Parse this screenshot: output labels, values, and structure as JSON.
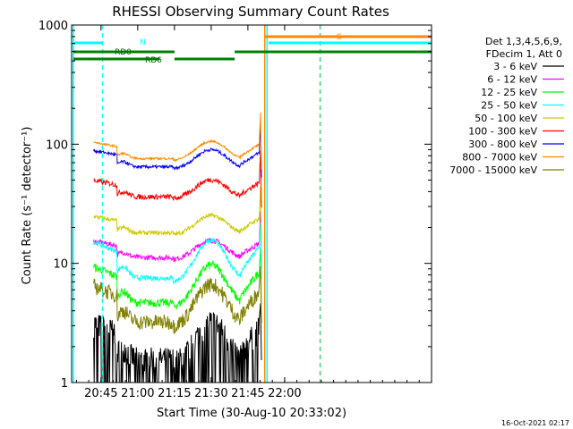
{
  "chart_data": {
    "type": "line",
    "title": "RHESSI Observing Summary Count Rates",
    "xlabel": "Start Time (30-Aug-10 20:33:02)",
    "ylabel": "Count Rate (s⁻¹ detector⁻¹)",
    "y_scale": "log",
    "ylim": [
      1,
      1000
    ],
    "xlim_minutes": [
      20.55,
      23.0
    ],
    "x_ticks": [
      {
        "label": "20:45",
        "t": 20.75
      },
      {
        "label": "21:00",
        "t": 21.0
      },
      {
        "label": "21:15",
        "t": 21.25
      },
      {
        "label": "21:30",
        "t": 21.5
      },
      {
        "label": "21:45",
        "t": 21.75
      },
      {
        "label": "22:00",
        "t": 22.0
      }
    ],
    "y_ticks": [
      {
        "label": "1",
        "v": 1
      },
      {
        "label": "10",
        "v": 10
      },
      {
        "label": "100",
        "v": 100
      },
      {
        "label": "1000",
        "v": 1000
      }
    ],
    "legend_header": [
      "Det 1,3,4,5,6,9,",
      "FDecim 1, Att 0"
    ],
    "legend_placement": "right",
    "series": [
      {
        "name": "3 - 6 keV",
        "color": "#000000",
        "level": 2.2,
        "noise": 0.25
      },
      {
        "name": "6 - 12 keV",
        "color": "#ff00ff",
        "level": 13.0,
        "noise": 0.05
      },
      {
        "name": "12 - 25 keV",
        "color": "#00ff00",
        "level": 6.5,
        "noise": 0.08
      },
      {
        "name": "25 - 50 keV",
        "color": "#00ffff",
        "level": 10.5,
        "noise": 0.05
      },
      {
        "name": "50 - 100 keV",
        "color": "#cccc00",
        "level": 21.0,
        "noise": 0.04
      },
      {
        "name": "100 - 300 keV",
        "color": "#ff0000",
        "level": 42.0,
        "noise": 0.05
      },
      {
        "name": "300 - 800 keV",
        "color": "#0000ff",
        "level": 75.0,
        "noise": 0.03
      },
      {
        "name": "800 - 7000 keV",
        "color": "#ff8800",
        "level": 88.0,
        "noise": 0.02
      },
      {
        "name": "7000 - 15000 keV",
        "color": "#808000",
        "level": 4.5,
        "noise": 0.15
      }
    ],
    "annotations": {
      "flag_labels": [
        {
          "text": "RD0",
          "color": "#006600"
        },
        {
          "text": "RD6",
          "color": "#006600"
        },
        {
          "text": "N",
          "color": "#00ffff"
        },
        {
          "text": "S",
          "color": "#ff8800"
        }
      ]
    },
    "timestamp": "16-Oct-2021 02:17"
  },
  "colors": {
    "saa_line": "#00ffff",
    "flag_green": "#008000",
    "night_line": "#ff8800"
  }
}
